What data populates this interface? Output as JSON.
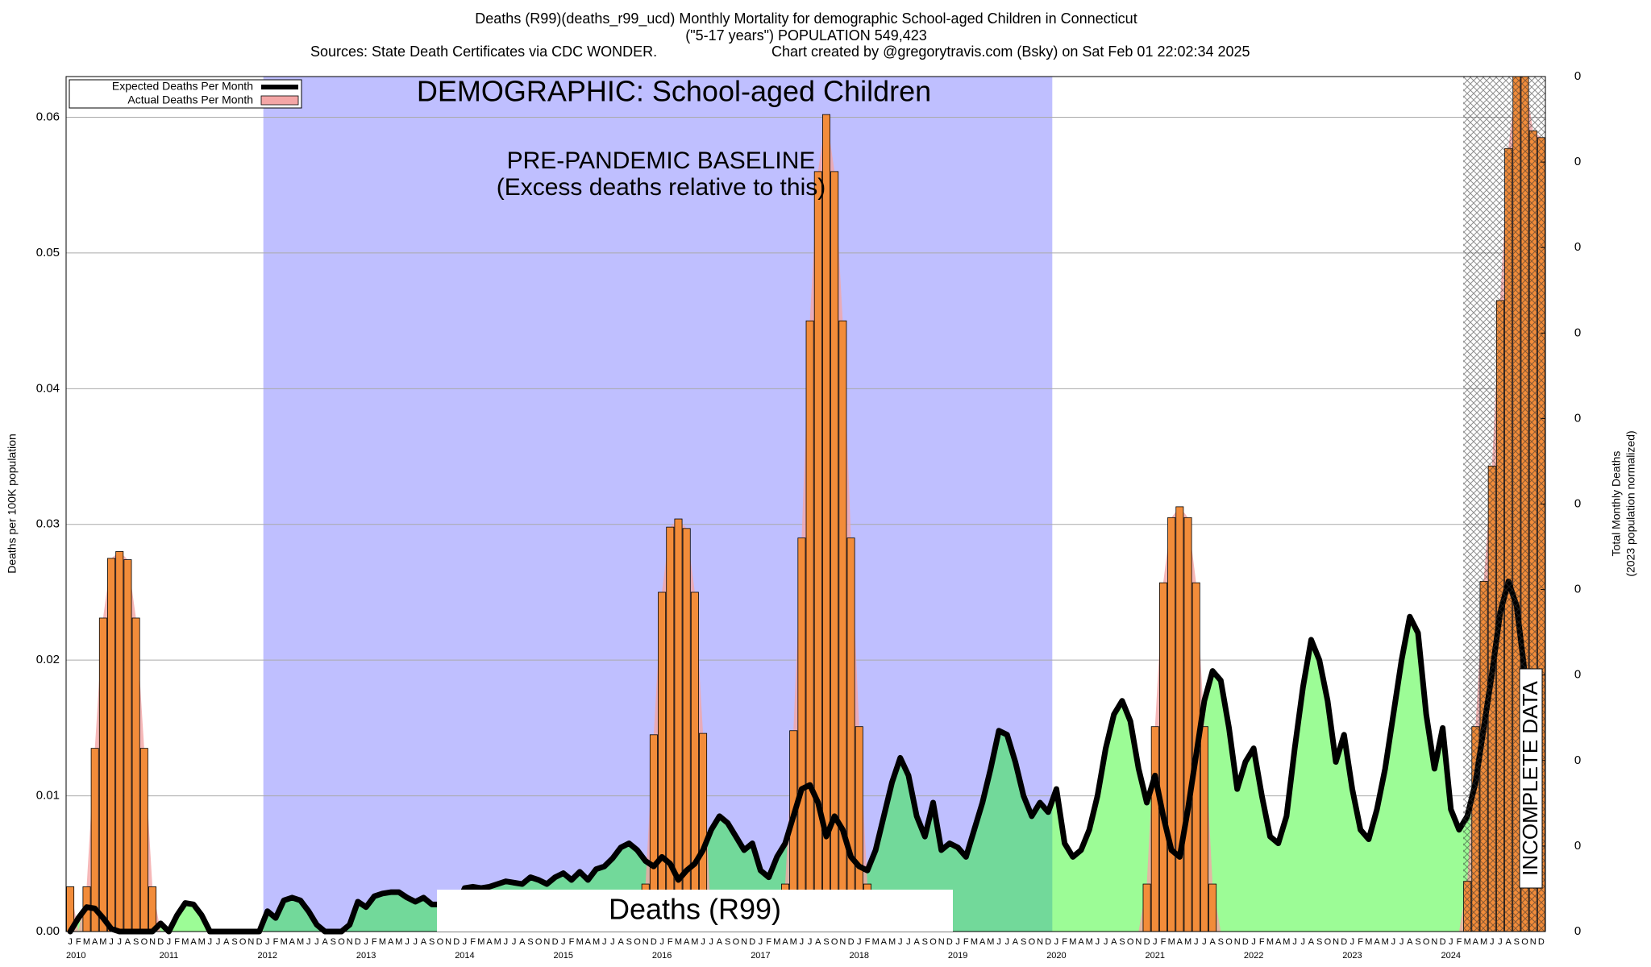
{
  "chart_data": {
    "type": "bar",
    "title": "Deaths (R99)(deaths_r99_ucd) Monthly Mortality for demographic School-aged Children in Connecticut",
    "subtitle": "(\"5-17 years\") POPULATION 549,423",
    "sources": "Sources: State Death Certificates via CDC WONDER.",
    "credit": "Chart created by @gregorytravis.com (Bsky) on Sat Feb 01 22:02:34 2025",
    "ylabel": "Deaths per 100K population",
    "y2label": "Total Monthly Deaths",
    "y2label_note": "(2023 population normalized)",
    "annotations": {
      "demographic": "DEMOGRAPHIC: School-aged Children",
      "baseline": "PRE-PANDEMIC BASELINE",
      "baseline_note": "(Excess deaths relative to this)",
      "cause": "Deaths (R99)",
      "incomplete": "INCOMPLETE DATA"
    },
    "categories": [
      "J",
      "F",
      "M",
      "A",
      "M",
      "J",
      "J",
      "A",
      "S",
      "O",
      "N",
      "D",
      "J",
      "F",
      "M",
      "A",
      "M",
      "J",
      "J",
      "A",
      "S",
      "O",
      "N",
      "D",
      "J",
      "F",
      "M",
      "A",
      "M",
      "J",
      "J",
      "A",
      "S",
      "O",
      "N",
      "D",
      "J",
      "F",
      "M",
      "A",
      "M",
      "J",
      "J",
      "A",
      "S",
      "O",
      "N",
      "D",
      "J",
      "F",
      "M",
      "A",
      "M",
      "J",
      "J",
      "A",
      "S",
      "O",
      "N",
      "D",
      "J",
      "F",
      "M",
      "A",
      "M",
      "J",
      "J",
      "A",
      "S",
      "O",
      "N",
      "D",
      "J",
      "F",
      "M",
      "A",
      "M",
      "J",
      "J",
      "A",
      "S",
      "O",
      "N",
      "D",
      "J",
      "F",
      "M",
      "A",
      "M",
      "J",
      "J",
      "A",
      "S",
      "O",
      "N",
      "D",
      "J",
      "F",
      "M",
      "A",
      "M",
      "J",
      "J",
      "A",
      "S",
      "O",
      "N",
      "D",
      "J",
      "F",
      "M",
      "A",
      "M",
      "J",
      "J",
      "A",
      "S",
      "O",
      "N",
      "D",
      "J",
      "F",
      "M",
      "A",
      "M",
      "J",
      "J",
      "A",
      "S",
      "O",
      "N",
      "D",
      "J",
      "F",
      "M",
      "A",
      "M",
      "J",
      "J",
      "A",
      "S",
      "O",
      "N",
      "D",
      "J",
      "F",
      "M",
      "A",
      "M",
      "J",
      "J",
      "A",
      "S",
      "O",
      "N",
      "D",
      "J",
      "F",
      "M",
      "A",
      "M",
      "J",
      "J",
      "A",
      "S",
      "O",
      "N",
      "D",
      "J",
      "F",
      "M",
      "A",
      "M",
      "J",
      "J",
      "A",
      "S",
      "O",
      "N",
      "D"
    ],
    "year_labels": [
      "2010",
      "2011",
      "2012",
      "2013",
      "2014",
      "2015",
      "2016",
      "2017",
      "2018",
      "2019",
      "2020",
      "2021",
      "2022",
      "2023",
      "2024"
    ],
    "series": [
      {
        "name": "Expected Deaths Per Month",
        "type": "line",
        "color": "#000000",
        "area_color": "#9cfc96",
        "baseline_area_color": "#72d99a",
        "values": [
          0,
          0.001,
          0.0018,
          0.0017,
          0.001,
          0.0002,
          0,
          0,
          0,
          0,
          0,
          0.0006,
          0,
          0.0012,
          0.0021,
          0.002,
          0.0012,
          0,
          0,
          0,
          0,
          0,
          0,
          0,
          0.0015,
          0.001,
          0.0023,
          0.0025,
          0.0023,
          0.0015,
          0.0005,
          0,
          0,
          0,
          0.0005,
          0.0022,
          0.0018,
          0.0026,
          0.0028,
          0.0029,
          0.0029,
          0.0025,
          0.0022,
          0.0025,
          0.002,
          0.002,
          0.0021,
          0.0018,
          0.0032,
          0.0033,
          0.0032,
          0.0033,
          0.0035,
          0.0037,
          0.0036,
          0.0035,
          0.004,
          0.0038,
          0.0035,
          0.004,
          0.0043,
          0.0038,
          0.0044,
          0.0038,
          0.0046,
          0.0048,
          0.0054,
          0.0062,
          0.0065,
          0.006,
          0.0052,
          0.0048,
          0.0055,
          0.005,
          0.0038,
          0.0045,
          0.005,
          0.006,
          0.0075,
          0.0085,
          0.008,
          0.007,
          0.006,
          0.0065,
          0.0045,
          0.004,
          0.0055,
          0.0065,
          0.0085,
          0.0105,
          0.0108,
          0.0095,
          0.007,
          0.0085,
          0.0075,
          0.0055,
          0.0048,
          0.0045,
          0.006,
          0.0085,
          0.011,
          0.0128,
          0.0115,
          0.0085,
          0.007,
          0.0095,
          0.006,
          0.0065,
          0.0062,
          0.0055,
          0.0075,
          0.0095,
          0.012,
          0.0148,
          0.0145,
          0.0125,
          0.01,
          0.0085,
          0.0095,
          0.0088,
          0.0105,
          0.0065,
          0.0055,
          0.006,
          0.0075,
          0.01,
          0.0135,
          0.016,
          0.017,
          0.0155,
          0.012,
          0.0095,
          0.0115,
          0.0085,
          0.006,
          0.0055,
          0.009,
          0.013,
          0.017,
          0.0192,
          0.0185,
          0.015,
          0.0105,
          0.0125,
          0.0135,
          0.01,
          0.007,
          0.0065,
          0.0085,
          0.0135,
          0.018,
          0.0215,
          0.02,
          0.017,
          0.0125,
          0.0145,
          0.0105,
          0.0075,
          0.0068,
          0.009,
          0.012,
          0.016,
          0.02,
          0.0232,
          0.022,
          0.016,
          0.012,
          0.015,
          0.009,
          0.0075,
          0.0085,
          0.011,
          0.015,
          0.019,
          0.0235,
          0.0258,
          0.024,
          0.019,
          0.0185,
          null
        ]
      },
      {
        "name": "Actual Deaths Per Month",
        "type": "bar",
        "color": "#f4a6a6",
        "bar_color": "#f28c3a",
        "values": [
          0.0033,
          0,
          0.0033,
          0.0135,
          0.0231,
          0.0275,
          0.028,
          0.0274,
          0.0231,
          0.0135,
          0.0033,
          0,
          0,
          0,
          0,
          0,
          0,
          0,
          0,
          0,
          0,
          0,
          0,
          0,
          0,
          0,
          0,
          0,
          0,
          0,
          0,
          0,
          0,
          0,
          0,
          0,
          0,
          0,
          0,
          0,
          0,
          0,
          0,
          0,
          0,
          0,
          0,
          0,
          0,
          0,
          0,
          0,
          0,
          0,
          0,
          0,
          0,
          0,
          0,
          0,
          0,
          0,
          0,
          0,
          0,
          0,
          0,
          0,
          0,
          0,
          0.0035,
          0.0145,
          0.025,
          0.0298,
          0.0304,
          0.0297,
          0.025,
          0.0146,
          0,
          0,
          0,
          0,
          0,
          0,
          0,
          0,
          0,
          0.0035,
          0.0148,
          0.029,
          0.045,
          0.056,
          0.0602,
          0.056,
          0.045,
          0.029,
          0.0151,
          0.0035,
          0,
          0,
          0,
          0,
          0,
          0,
          0,
          0,
          0,
          0,
          0,
          0,
          0,
          0,
          0,
          0,
          0,
          0,
          0,
          0,
          0,
          0,
          0,
          0,
          0,
          0,
          0,
          0,
          0,
          0,
          0,
          0,
          0,
          0.0035,
          0.0151,
          0.0257,
          0.0305,
          0.0313,
          0.0305,
          0.0257,
          0.0151,
          0.0035,
          0,
          0,
          0,
          0,
          0,
          0,
          0,
          0,
          0,
          0,
          0,
          0,
          0,
          0,
          0,
          0,
          0,
          0,
          0,
          0,
          0,
          0,
          0,
          0,
          0,
          0,
          0,
          0,
          0,
          0,
          0.0037,
          0.0151,
          0.0258,
          0.0343,
          0.0465,
          0.0577,
          0.063,
          0.063,
          0.059,
          0.0585
        ]
      }
    ],
    "baseline_band_color": "#bfbfff",
    "ylim": [
      0,
      0.063
    ],
    "yticks": [
      {
        "value": 0,
        "label": "0.00"
      },
      0.01,
      0.02,
      0.03,
      0.04,
      0.05,
      0.06
    ],
    "y2lim": [
      0,
      0.3461
    ],
    "y2ticks": [
      {
        "value": 0,
        "label": "0"
      },
      {
        "value": 0.03461,
        "label": "0"
      },
      {
        "value": 0.06922,
        "label": "0"
      },
      {
        "value": 0.10383,
        "label": "0"
      },
      {
        "value": 0.13844,
        "label": "0"
      },
      {
        "value": 0.17305,
        "label": "0"
      },
      {
        "value": 0.20766,
        "label": "0"
      },
      {
        "value": 0.24227,
        "label": "0"
      },
      {
        "value": 0.27688,
        "label": "0"
      },
      {
        "value": 0.31149,
        "label": "0"
      },
      {
        "value": 0.3461,
        "label": "0"
      }
    ],
    "grid": true,
    "legend": "top-left"
  }
}
